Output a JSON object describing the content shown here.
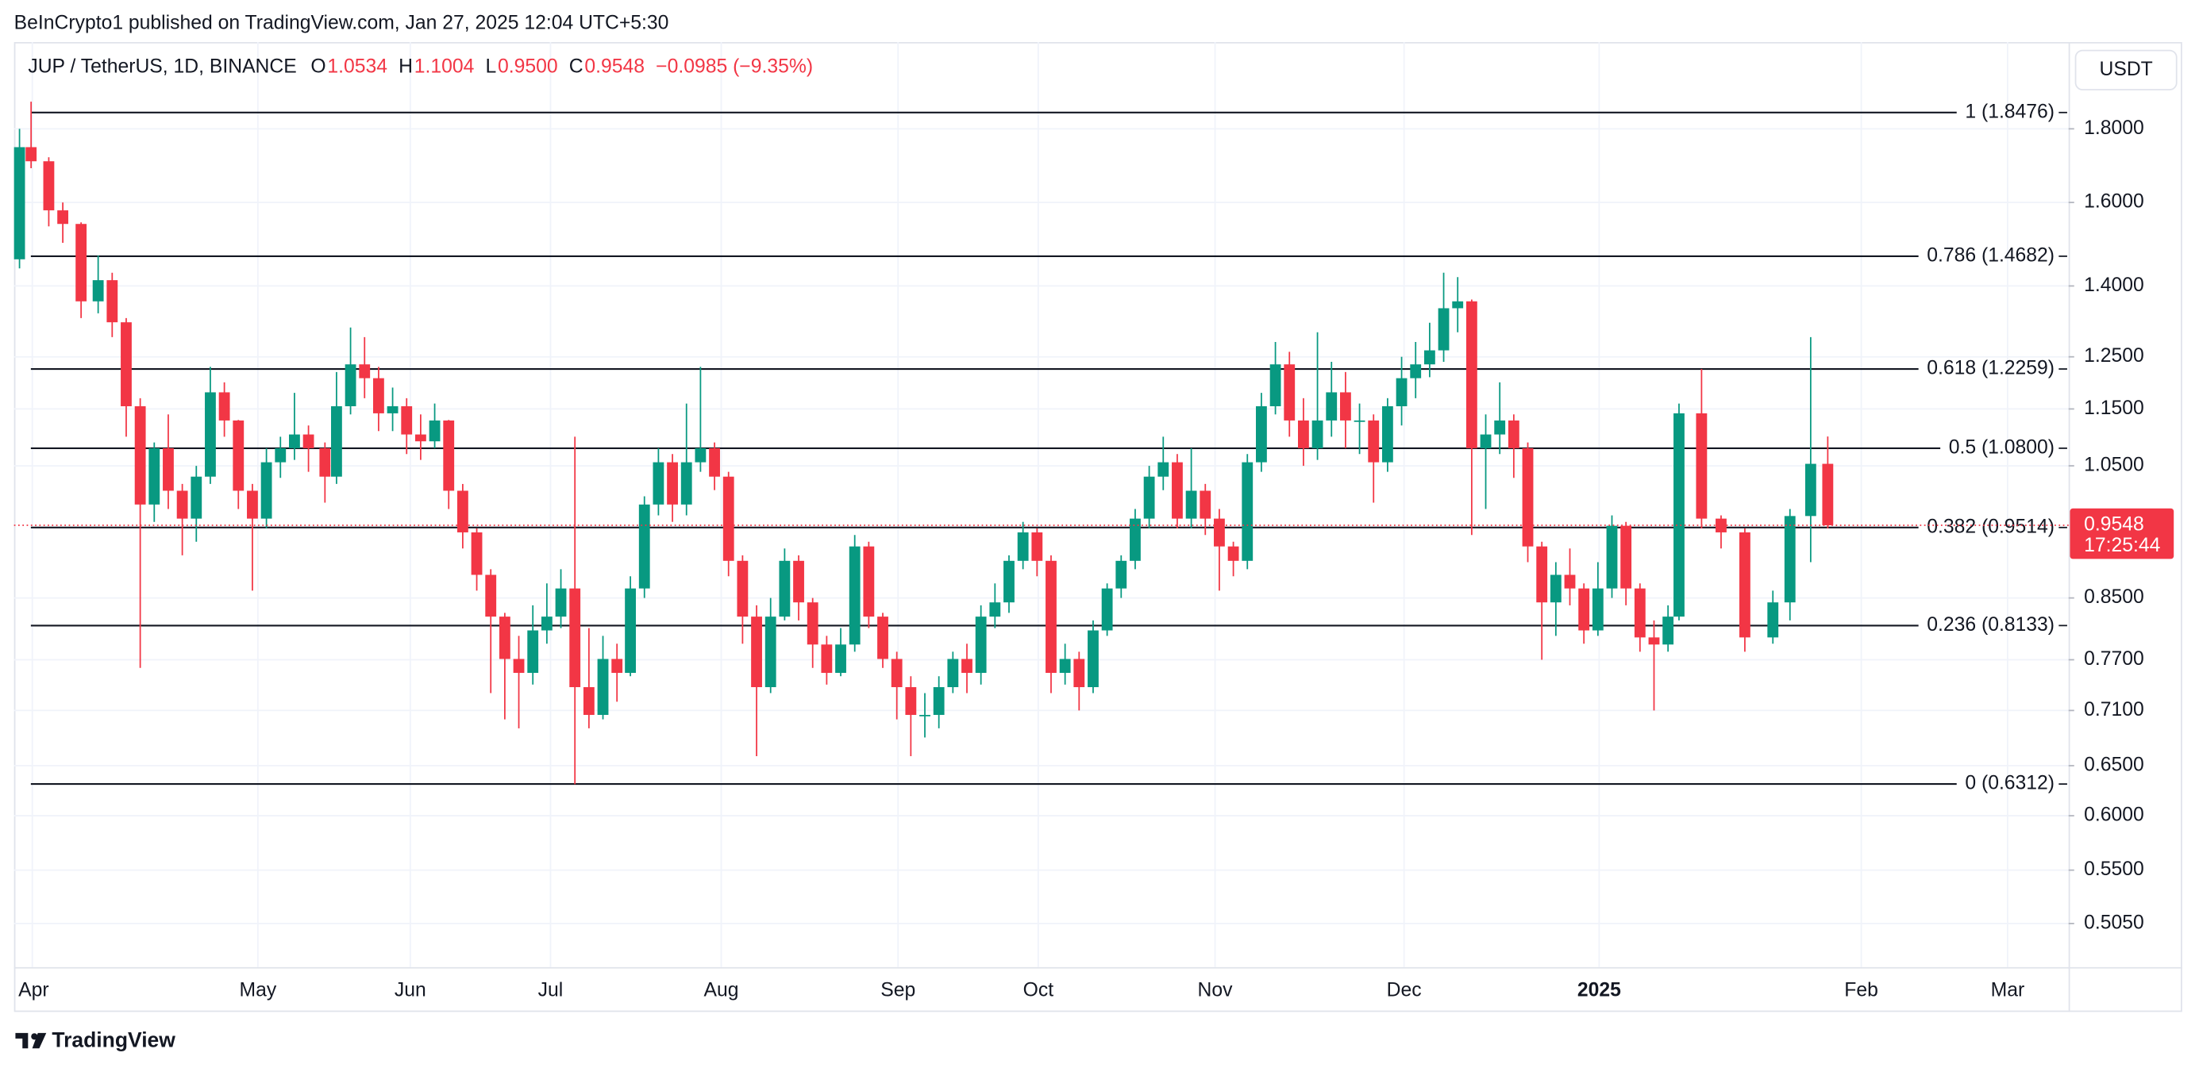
{
  "header": {
    "published": "BeInCrypto1 published on TradingView.com, Jan 27, 2025 12:04 UTC+5:30",
    "footer_brand": "TradingView"
  },
  "chart_data": {
    "type": "candlestick",
    "symbol": "JUP / TetherUS, 1D, BINANCE",
    "legend": [
      {
        "key": "O",
        "value": "1.0534"
      },
      {
        "key": "H",
        "value": "1.1004"
      },
      {
        "key": "L",
        "value": "0.9500"
      },
      {
        "key": "C",
        "value": "0.9548"
      }
    ],
    "change": "−0.0985 (−9.35%)",
    "currency": "USDT",
    "countdown": "17:25:44",
    "up_color": "#089981",
    "down_color": "#f23645",
    "level_color": "#131722",
    "log_scale": true,
    "grid": true,
    "xlim": [
      0,
      337
    ],
    "xticks": [
      {
        "value": 3,
        "label": "Apr"
      },
      {
        "value": 40,
        "label": "May"
      },
      {
        "value": 65,
        "label": "Jun"
      },
      {
        "value": 88,
        "label": "Jul"
      },
      {
        "value": 116,
        "label": "Aug"
      },
      {
        "value": 145,
        "label": "Sep"
      },
      {
        "value": 168,
        "label": "Oct"
      },
      {
        "value": 197,
        "label": "Nov"
      },
      {
        "value": 228,
        "label": "Dec"
      },
      {
        "value": 260,
        "label": "2025"
      },
      {
        "value": 303,
        "label": "Feb"
      },
      {
        "value": 327,
        "label": "Mar"
      }
    ],
    "ylim": [
      0.471,
      2.068
    ],
    "yticks": [
      {
        "value": 1.8,
        "label": "1.8000"
      },
      {
        "value": 1.6,
        "label": "1.6000"
      },
      {
        "value": 1.4,
        "label": "1.4000"
      },
      {
        "value": 1.25,
        "label": "1.2500"
      },
      {
        "value": 1.15,
        "label": "1.1500"
      },
      {
        "value": 1.05,
        "label": "1.0500"
      },
      {
        "value": 0.85,
        "label": "0.8500"
      },
      {
        "value": 0.77,
        "label": "0.7700"
      },
      {
        "value": 0.71,
        "label": "0.7100"
      },
      {
        "value": 0.65,
        "label": "0.6500"
      },
      {
        "value": 0.6,
        "label": "0.6000"
      },
      {
        "value": 0.55,
        "label": "0.5500"
      },
      {
        "value": 0.505,
        "label": "0.5050"
      }
    ],
    "levels": [
      {
        "value": 1.8476,
        "label": "1 (1.8476)"
      },
      {
        "value": 1.4682,
        "label": "0.786 (1.4682)"
      },
      {
        "value": 1.2259,
        "label": "0.618 (1.2259)"
      },
      {
        "value": 1.08,
        "label": "0.5 (1.0800)"
      },
      {
        "value": 0.9514,
        "label": "0.382 (0.9514)"
      },
      {
        "value": 0.8133,
        "label": "0.236 (0.8133)"
      },
      {
        "value": 0.6312,
        "label": "0 (0.6312)"
      }
    ],
    "x": [
      0.9,
      2.8,
      5.7,
      8.0,
      11.0,
      13.8,
      16.1,
      18.4,
      20.7,
      23.0,
      25.3,
      27.6,
      29.9,
      32.2,
      34.5,
      36.8,
      39.1,
      41.4,
      43.7,
      46.0,
      48.3,
      51.0,
      52.9,
      55.2,
      57.5,
      59.8,
      62.1,
      64.4,
      66.7,
      69.0,
      71.3,
      73.6,
      75.9,
      78.2,
      80.5,
      82.8,
      85.1,
      87.4,
      89.7,
      92.0,
      94.3,
      96.6,
      98.9,
      101.1,
      103.4,
      105.7,
      108.0,
      110.3,
      112.6,
      114.9,
      117.2,
      119.5,
      121.8,
      124.1,
      126.4,
      128.7,
      131.0,
      133.3,
      135.6,
      137.9,
      140.2,
      142.5,
      144.8,
      147.1,
      149.4,
      151.7,
      154.0,
      156.3,
      158.6,
      160.9,
      163.2,
      165.5,
      167.8,
      170.1,
      172.4,
      174.7,
      177.0,
      179.3,
      181.6,
      183.9,
      186.2,
      188.5,
      190.8,
      193.1,
      195.4,
      197.7,
      200.0,
      202.3,
      204.6,
      206.9,
      209.2,
      211.5,
      213.8,
      216.1,
      218.4,
      220.7,
      223.0,
      225.3,
      227.6,
      229.9,
      232.2,
      234.5,
      236.8,
      239.1,
      241.4,
      243.7,
      246.0,
      248.3,
      250.6,
      252.9,
      255.2,
      257.5,
      259.8,
      262.1,
      264.4,
      266.7,
      269.0,
      271.3,
      273.1,
      276.8,
      280.0,
      283.9,
      288.5,
      291.3,
      294.7,
      297.5
    ],
    "open": [
      1.461,
      1.748,
      1.709,
      1.58,
      1.546,
      1.366,
      1.413,
      1.321,
      1.155,
      0.987,
      1.08,
      1.009,
      0.965,
      1.032,
      1.181,
      1.129,
      1.009,
      0.965,
      1.056,
      1.08,
      1.104,
      1.08,
      1.032,
      1.155,
      1.235,
      1.208,
      1.142,
      1.155,
      1.104,
      1.092,
      1.129,
      1.009,
      0.944,
      0.882,
      0.825,
      0.771,
      0.754,
      0.807,
      0.825,
      0.863,
      0.737,
      0.705,
      0.771,
      0.754,
      0.863,
      0.987,
      1.056,
      0.987,
      1.056,
      1.08,
      1.032,
      0.902,
      0.825,
      0.737,
      0.825,
      0.902,
      0.844,
      0.789,
      0.754,
      0.789,
      0.923,
      0.825,
      0.771,
      0.737,
      0.705,
      0.705,
      0.737,
      0.771,
      0.754,
      0.825,
      0.844,
      0.902,
      0.944,
      0.902,
      0.754,
      0.771,
      0.737,
      0.807,
      0.863,
      0.902,
      0.965,
      1.032,
      1.056,
      0.965,
      1.009,
      0.965,
      0.923,
      0.902,
      1.056,
      1.155,
      1.235,
      1.129,
      1.08,
      1.129,
      1.181,
      1.129,
      1.129,
      1.056,
      1.155,
      1.208,
      1.235,
      1.263,
      1.351,
      1.366,
      1.08,
      1.104,
      1.129,
      1.08,
      0.923,
      0.844,
      0.882,
      0.863,
      0.807,
      0.863,
      0.954,
      0.863,
      0.798,
      0.789,
      0.825,
      1.142,
      0.965,
      0.944,
      0.798,
      0.844,
      0.969,
      1.0534
    ],
    "high": [
      1.8,
      1.88,
      1.72,
      1.6,
      1.55,
      1.47,
      1.43,
      1.33,
      1.17,
      1.09,
      1.14,
      1.02,
      1.05,
      1.23,
      1.2,
      1.13,
      1.02,
      1.08,
      1.1,
      1.18,
      1.12,
      1.09,
      1.22,
      1.31,
      1.29,
      1.23,
      1.19,
      1.17,
      1.14,
      1.16,
      1.13,
      1.02,
      0.95,
      0.89,
      0.83,
      0.8,
      0.84,
      0.87,
      0.89,
      1.1,
      0.81,
      0.8,
      0.79,
      0.88,
      1.0,
      1.08,
      1.07,
      1.16,
      1.23,
      1.09,
      1.04,
      0.91,
      0.84,
      0.85,
      0.92,
      0.91,
      0.85,
      0.8,
      0.81,
      0.94,
      0.93,
      0.83,
      0.78,
      0.75,
      0.73,
      0.75,
      0.78,
      0.79,
      0.84,
      0.87,
      0.91,
      0.96,
      0.95,
      0.91,
      0.79,
      0.78,
      0.82,
      0.87,
      0.91,
      0.98,
      1.05,
      1.1,
      1.07,
      1.08,
      1.02,
      0.98,
      0.93,
      1.07,
      1.18,
      1.28,
      1.26,
      1.17,
      1.3,
      1.24,
      1.22,
      1.16,
      1.14,
      1.17,
      1.25,
      1.28,
      1.32,
      1.43,
      1.42,
      1.37,
      1.14,
      1.2,
      1.14,
      1.09,
      0.93,
      0.9,
      0.92,
      0.87,
      0.9,
      0.97,
      0.96,
      0.87,
      0.82,
      0.84,
      1.16,
      1.226,
      0.97,
      0.95,
      0.86,
      0.98,
      1.29,
      1.1004
    ],
    "low": [
      1.44,
      1.69,
      1.54,
      1.5,
      1.33,
      1.34,
      1.29,
      1.1,
      0.76,
      0.96,
      0.98,
      0.91,
      0.93,
      1.02,
      1.1,
      0.98,
      0.86,
      0.95,
      1.03,
      1.06,
      1.04,
      0.99,
      1.02,
      1.14,
      1.17,
      1.11,
      1.11,
      1.07,
      1.06,
      1.08,
      0.98,
      0.92,
      0.86,
      0.73,
      0.7,
      0.69,
      0.74,
      0.79,
      0.81,
      0.631,
      0.69,
      0.7,
      0.72,
      0.75,
      0.85,
      0.97,
      0.96,
      0.97,
      1.04,
      1.01,
      0.88,
      0.79,
      0.66,
      0.73,
      0.82,
      0.82,
      0.76,
      0.74,
      0.75,
      0.78,
      0.81,
      0.76,
      0.7,
      0.66,
      0.68,
      0.69,
      0.73,
      0.73,
      0.74,
      0.81,
      0.83,
      0.89,
      0.88,
      0.73,
      0.74,
      0.71,
      0.73,
      0.8,
      0.85,
      0.89,
      0.95,
      1.01,
      0.95,
      0.95,
      0.94,
      0.86,
      0.88,
      0.89,
      1.04,
      1.14,
      1.1,
      1.05,
      1.06,
      1.1,
      1.08,
      1.07,
      0.99,
      1.04,
      1.12,
      1.17,
      1.21,
      1.24,
      1.3,
      0.94,
      0.98,
      1.07,
      1.03,
      0.9,
      0.77,
      0.8,
      0.84,
      0.79,
      0.8,
      0.85,
      0.84,
      0.78,
      0.71,
      0.78,
      0.82,
      0.95,
      0.92,
      0.78,
      0.79,
      0.82,
      0.9,
      0.95
    ],
    "close": [
      1.748,
      1.709,
      1.58,
      1.546,
      1.366,
      1.413,
      1.321,
      1.155,
      0.987,
      1.08,
      1.009,
      0.965,
      1.032,
      1.181,
      1.129,
      1.009,
      0.965,
      1.056,
      1.08,
      1.104,
      1.08,
      1.032,
      1.155,
      1.235,
      1.208,
      1.142,
      1.155,
      1.104,
      1.092,
      1.129,
      1.009,
      0.944,
      0.882,
      0.825,
      0.771,
      0.754,
      0.807,
      0.825,
      0.863,
      0.737,
      0.705,
      0.771,
      0.754,
      0.863,
      0.987,
      1.056,
      0.987,
      1.056,
      1.08,
      1.032,
      0.902,
      0.825,
      0.737,
      0.825,
      0.902,
      0.844,
      0.789,
      0.754,
      0.789,
      0.923,
      0.825,
      0.771,
      0.737,
      0.705,
      0.705,
      0.737,
      0.771,
      0.754,
      0.825,
      0.844,
      0.902,
      0.944,
      0.902,
      0.754,
      0.771,
      0.737,
      0.807,
      0.863,
      0.902,
      0.965,
      1.032,
      1.056,
      0.965,
      1.009,
      0.965,
      0.923,
      0.902,
      1.056,
      1.155,
      1.235,
      1.129,
      1.08,
      1.129,
      1.181,
      1.129,
      1.129,
      1.056,
      1.155,
      1.208,
      1.235,
      1.263,
      1.351,
      1.366,
      1.08,
      1.104,
      1.129,
      1.08,
      0.923,
      0.844,
      0.882,
      0.863,
      0.807,
      0.863,
      0.954,
      0.863,
      0.798,
      0.789,
      0.825,
      1.142,
      0.965,
      0.944,
      0.798,
      0.844,
      0.969,
      1.0534,
      0.9548
    ]
  }
}
